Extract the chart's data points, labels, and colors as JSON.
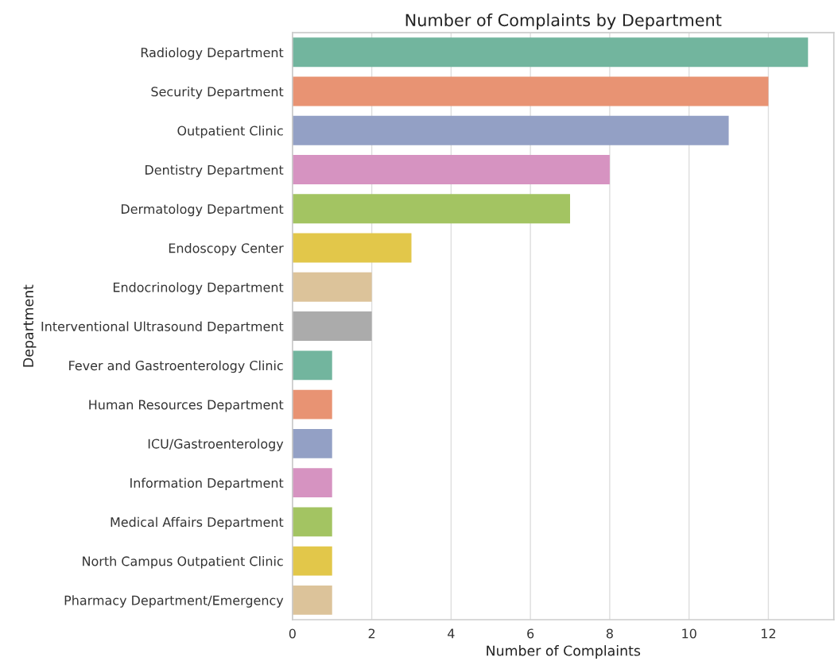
{
  "chart_data": {
    "type": "bar",
    "orientation": "horizontal",
    "title": "Number of Complaints by Department",
    "xlabel": "Number of Complaints",
    "ylabel": "Department",
    "categories": [
      "Radiology Department",
      "Security Department",
      "Outpatient Clinic",
      "Dentistry Department",
      "Dermatology Department",
      "Endoscopy Center",
      "Endocrinology Department",
      "Interventional Ultrasound Department",
      "Fever and Gastroenterology Clinic",
      "Human Resources Department",
      "ICU/Gastroenterology",
      "Information Department",
      "Medical Affairs Department",
      "North Campus Outpatient Clinic",
      "Pharmacy Department/Emergency"
    ],
    "values": [
      13,
      12,
      11,
      8,
      7,
      3,
      2,
      2,
      1,
      1,
      1,
      1,
      1,
      1,
      1
    ],
    "colors": [
      "#72b59e",
      "#e89373",
      "#93a0c5",
      "#d693c1",
      "#a3c462",
      "#e2c74a",
      "#dcc39a",
      "#ababab",
      "#72b59e",
      "#e89373",
      "#93a0c5",
      "#d693c1",
      "#a3c462",
      "#e2c74a",
      "#dcc39a"
    ],
    "xlim": [
      0,
      13.65
    ],
    "xticks": [
      0,
      2,
      4,
      6,
      8,
      10,
      12
    ],
    "grid": "x"
  }
}
